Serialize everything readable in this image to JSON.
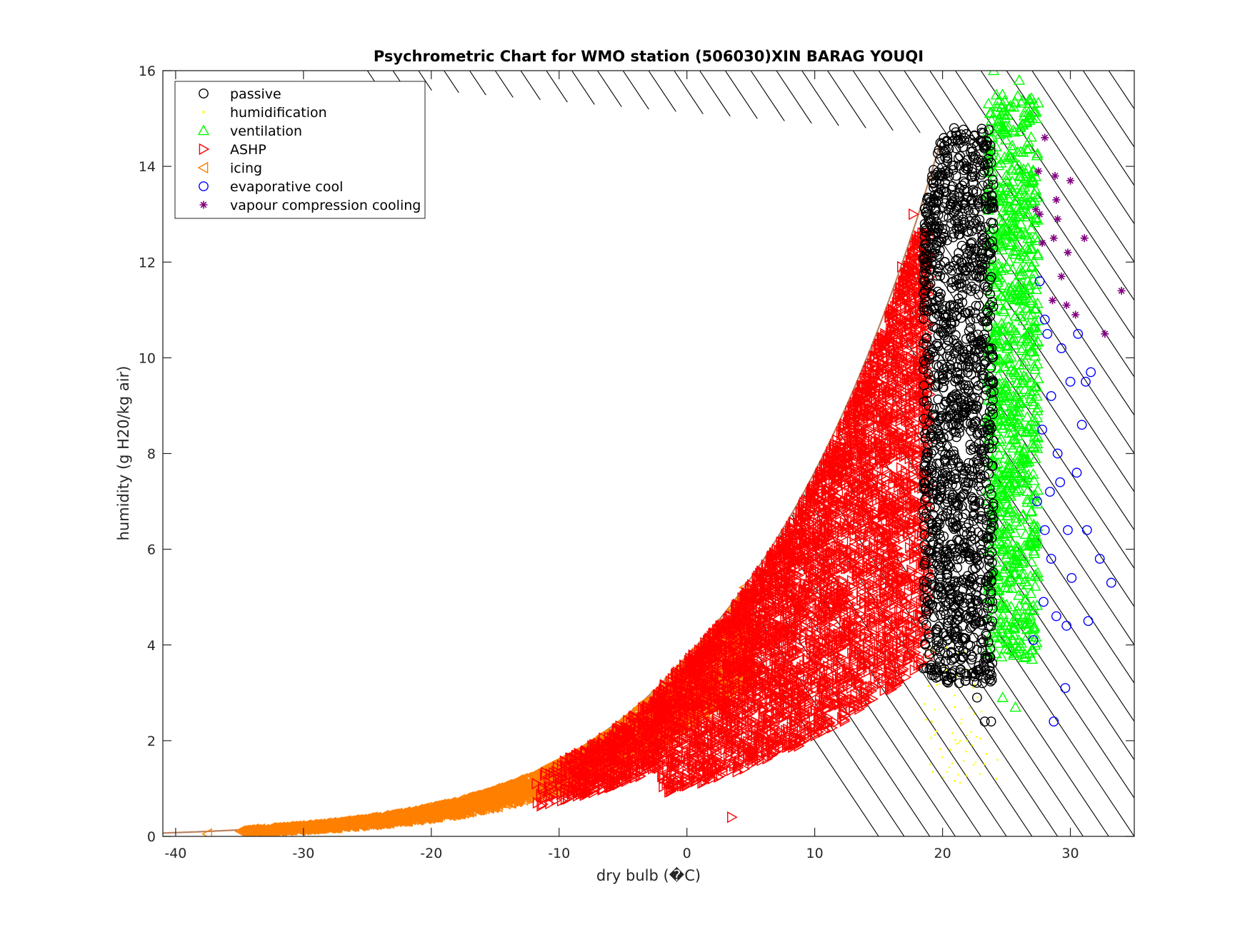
{
  "chart_data": {
    "type": "scatter",
    "title": "Psychrometric Chart for WMO station (506030)XIN BARAG YOUQI",
    "xlabel": "dry bulb (�C)",
    "ylabel": "humidity (g H20/kg air)",
    "xlim": [
      -41,
      35
    ],
    "ylim": [
      0,
      16
    ],
    "xticks": [
      -40,
      -30,
      -20,
      -10,
      0,
      10,
      20,
      30
    ],
    "yticks": [
      0,
      2,
      4,
      6,
      8,
      10,
      12,
      14,
      16
    ],
    "legend_position": "top-left",
    "saturation_curve": true,
    "hatching": "diagonal enthalpy lines right of saturation curve",
    "series": [
      {
        "name": "passive",
        "marker": "circle",
        "color": "#000000",
        "clusters": [
          {
            "x": [
              18.5,
              24
            ],
            "y": [
              3.2,
              14.8
            ],
            "count": 1400
          }
        ],
        "points": [
          [
            20.9,
            14.8
          ],
          [
            21.3,
            3.2
          ],
          [
            22.7,
            2.9
          ],
          [
            23.3,
            2.4
          ],
          [
            23.8,
            2.4
          ],
          [
            22.3,
            3.4
          ]
        ]
      },
      {
        "name": "humidification",
        "marker": "dot",
        "color": "#ffff00",
        "clusters": [
          {
            "x": [
              18.5,
              23.5
            ],
            "y": [
              1.1,
              4.0
            ],
            "count": 70
          }
        ],
        "points": [
          [
            24.3,
            1.6
          ],
          [
            24.2,
            1.2
          ]
        ]
      },
      {
        "name": "ventilation",
        "marker": "triangle-up",
        "color": "#00ff00",
        "clusters": [
          {
            "x": [
              23.5,
              27.5
            ],
            "y": [
              3.7,
              15.5
            ],
            "count": 900
          }
        ],
        "points": [
          [
            24.0,
            16.0
          ],
          [
            26.0,
            15.8
          ],
          [
            27.3,
            15.0
          ],
          [
            25.7,
            2.7
          ],
          [
            24.7,
            2.9
          ],
          [
            27.0,
            3.7
          ]
        ]
      },
      {
        "name": "ASHP",
        "marker": "triangle-right",
        "color": "#ff0000",
        "clusters": [
          {
            "x": [
              -12,
              19
            ],
            "y": [
              0.1,
              13.0
            ],
            "count": 5000,
            "band": "below-saturation"
          }
        ],
        "points": [
          [
            3.5,
            0.4
          ],
          [
            17.7,
            13.0
          ],
          [
            16.8,
            11.9
          ],
          [
            13.5,
            8.7
          ]
        ]
      },
      {
        "name": "icing",
        "marker": "triangle-left",
        "color": "#ff8000",
        "clusters": [
          {
            "x": [
              -35,
              5
            ],
            "y": [
              0.05,
              5.2
            ],
            "count": 3000,
            "band": "near-saturation"
          }
        ],
        "points": [
          [
            -37.5,
            0.05
          ],
          [
            4.5,
            5.2
          ],
          [
            -34.5,
            0.1
          ]
        ]
      },
      {
        "name": "evaporative cool",
        "marker": "circle",
        "color": "#0000ff",
        "points": [
          [
            27.6,
            11.6
          ],
          [
            28.2,
            10.5
          ],
          [
            29.3,
            10.2
          ],
          [
            30.0,
            9.5
          ],
          [
            31.2,
            9.5
          ],
          [
            30.9,
            8.6
          ],
          [
            28.5,
            9.2
          ],
          [
            27.8,
            8.5
          ],
          [
            29.2,
            7.4
          ],
          [
            30.5,
            7.6
          ],
          [
            27.4,
            7.0
          ],
          [
            28.0,
            6.4
          ],
          [
            29.8,
            6.4
          ],
          [
            31.3,
            6.4
          ],
          [
            28.5,
            5.8
          ],
          [
            30.1,
            5.4
          ],
          [
            32.3,
            5.8
          ],
          [
            33.2,
            5.3
          ],
          [
            27.9,
            4.9
          ],
          [
            28.9,
            4.6
          ],
          [
            29.7,
            4.4
          ],
          [
            31.4,
            4.5
          ],
          [
            27.1,
            4.1
          ],
          [
            29.6,
            3.1
          ],
          [
            28.7,
            2.4
          ],
          [
            28.0,
            10.8
          ],
          [
            30.6,
            10.5
          ],
          [
            29.0,
            8.0
          ],
          [
            28.4,
            7.2
          ],
          [
            31.6,
            9.7
          ]
        ]
      },
      {
        "name": "vapour compression cooling",
        "marker": "asterisk",
        "color": "#800080",
        "points": [
          [
            28.0,
            14.6
          ],
          [
            27.5,
            13.9
          ],
          [
            28.8,
            13.8
          ],
          [
            30.0,
            13.7
          ],
          [
            28.9,
            13.3
          ],
          [
            27.3,
            13.1
          ],
          [
            28.7,
            12.5
          ],
          [
            31.1,
            12.5
          ],
          [
            29.8,
            12.2
          ],
          [
            27.8,
            12.4
          ],
          [
            34.0,
            11.4
          ],
          [
            29.3,
            11.7
          ],
          [
            28.6,
            11.2
          ],
          [
            29.7,
            11.1
          ],
          [
            30.4,
            10.9
          ],
          [
            32.7,
            10.5
          ],
          [
            29.0,
            12.9
          ],
          [
            27.6,
            13.0
          ]
        ]
      }
    ]
  },
  "legend": {
    "items": [
      {
        "label": "passive",
        "marker": "circle",
        "color": "#000000"
      },
      {
        "label": "humidification",
        "marker": "dot",
        "color": "#ffff00"
      },
      {
        "label": "ventilation",
        "marker": "triangle-up",
        "color": "#00ff00"
      },
      {
        "label": "ASHP",
        "marker": "triangle-right",
        "color": "#ff0000"
      },
      {
        "label": "icing",
        "marker": "triangle-left",
        "color": "#ff8000"
      },
      {
        "label": "evaporative cool",
        "marker": "circle",
        "color": "#0000ff"
      },
      {
        "label": "vapour compression cooling",
        "marker": "asterisk",
        "color": "#800080"
      }
    ]
  }
}
